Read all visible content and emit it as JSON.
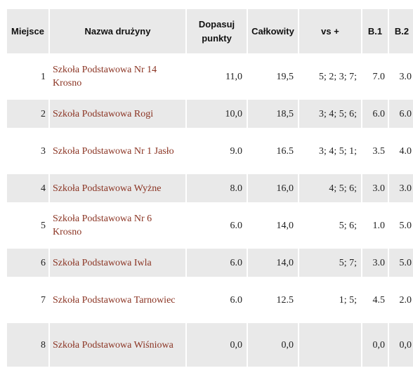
{
  "headers": {
    "place": "Miejsce",
    "team": "Nazwa drużyny",
    "adjust": "Dopasuj punkty",
    "total": "Całkowity",
    "vs": "vs +",
    "b1": "B.1",
    "b2": "B.2"
  },
  "rows": [
    {
      "place": "1",
      "team": "Szkoła Podstawowa Nr 14 Krosno",
      "adjust": "11,0",
      "total": "19,5",
      "vs": "5; 2; 3; 7;",
      "b1": "7.0",
      "b2": "3.0"
    },
    {
      "place": "2",
      "team": "Szkoła Podstawowa Rogi",
      "adjust": "10,0",
      "total": "18,5",
      "vs": "3; 4; 5; 6;",
      "b1": "6.0",
      "b2": "6.0"
    },
    {
      "place": "3",
      "team": "Szkoła Podstawowa Nr 1 Jasło",
      "adjust": "9.0",
      "total": "16.5",
      "vs": "3; 4; 5; 1;",
      "b1": "3.5",
      "b2": "4.0"
    },
    {
      "place": "4",
      "team": "Szkoła Podstawowa Wyżne",
      "adjust": "8.0",
      "total": "16,0",
      "vs": "4; 5; 6;",
      "b1": "3.0",
      "b2": "3.0"
    },
    {
      "place": "5",
      "team": "Szkoła Podstawowa Nr 6 Krosno",
      "adjust": "6.0",
      "total": "14,0",
      "vs": "5; 6;",
      "b1": "1.0",
      "b2": "5.0"
    },
    {
      "place": "6",
      "team": "Szkoła Podstawowa Iwla",
      "adjust": "6.0",
      "total": "14,0",
      "vs": "5; 7;",
      "b1": "3.0",
      "b2": "5.0"
    },
    {
      "place": "7",
      "team": "Szkoła Podstawowa Tarnowiec",
      "adjust": "6.0",
      "total": "12.5",
      "vs": "1; 5;",
      "b1": "4.5",
      "b2": "2.0"
    },
    {
      "place": "8",
      "team": "Szkoła Podstawowa Wiśniowa",
      "adjust": "0,0",
      "total": "0,0",
      "vs": "",
      "b1": "0,0",
      "b2": "0,0"
    }
  ]
}
